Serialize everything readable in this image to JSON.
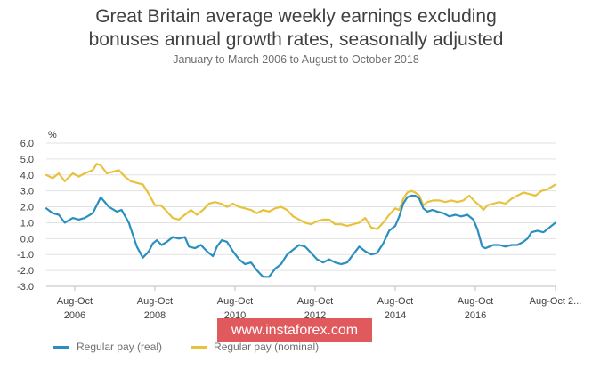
{
  "header": {
    "title_line1": "Great Britain average weekly earnings excluding",
    "title_line2": "bonuses annual growth rates, seasonally adjusted",
    "subtitle": "January to March 2006 to August to October 2018"
  },
  "watermark": "www.instaforex.com",
  "chart_data": {
    "type": "line",
    "title": "Great Britain average weekly earnings excluding bonuses annual growth rates, seasonally adjusted",
    "subtitle": "January to March 2006 to August to October 2018",
    "ylabel": "%",
    "ylim": [
      -3.0,
      6.0
    ],
    "yticks": [
      6.0,
      5.0,
      4.0,
      3.0,
      2.0,
      1.0,
      0.0,
      -1.0,
      -2.0,
      -3.0
    ],
    "ytick_labels": [
      "6.0",
      "5.0",
      "4.0",
      "3.0",
      "2.0",
      "1.0",
      "0.0",
      "-1.0",
      "-2.0",
      "-3.0"
    ],
    "x_start": "2006.04",
    "x_end": "2018.75",
    "xtick_positions": [
      2006.75,
      2008.75,
      2010.75,
      2012.75,
      2014.75,
      2016.75,
      2018.75
    ],
    "xtick_line1": [
      "Aug-Oct",
      "Aug-Oct",
      "Aug-Oct",
      "Aug-Oct",
      "Aug-Oct",
      "Aug-Oct",
      "Aug-Oct 2..."
    ],
    "xtick_line2": [
      "2006",
      "2008",
      "2010",
      "2012",
      "2014",
      "2016",
      ""
    ],
    "grid": true,
    "legend_position": "bottom-left",
    "series": [
      {
        "name": "Regular pay (real)",
        "color": "#2a8fc0",
        "x": [
          2006.04,
          2006.2,
          2006.35,
          2006.5,
          2006.7,
          2006.85,
          2007.0,
          2007.2,
          2007.4,
          2007.6,
          2007.8,
          2007.92,
          2008.1,
          2008.3,
          2008.45,
          2008.6,
          2008.7,
          2008.8,
          2008.92,
          2009.05,
          2009.2,
          2009.35,
          2009.5,
          2009.6,
          2009.75,
          2009.9,
          2010.05,
          2010.2,
          2010.3,
          2010.42,
          2010.55,
          2010.7,
          2010.85,
          2011.0,
          2011.15,
          2011.3,
          2011.45,
          2011.6,
          2011.75,
          2011.9,
          2012.05,
          2012.2,
          2012.35,
          2012.5,
          2012.65,
          2012.8,
          2012.95,
          2013.1,
          2013.25,
          2013.4,
          2013.55,
          2013.7,
          2013.85,
          2014.0,
          2014.15,
          2014.3,
          2014.45,
          2014.6,
          2014.75,
          2014.85,
          2014.95,
          2015.05,
          2015.15,
          2015.25,
          2015.35,
          2015.45,
          2015.55,
          2015.68,
          2015.8,
          2015.95,
          2016.1,
          2016.25,
          2016.4,
          2016.55,
          2016.7,
          2016.8,
          2016.92,
          2017.0,
          2017.1,
          2017.2,
          2017.35,
          2017.5,
          2017.65,
          2017.8,
          2017.95,
          2018.05,
          2018.15,
          2018.3,
          2018.45,
          2018.6,
          2018.75
        ],
        "values": [
          1.9,
          1.6,
          1.5,
          1.0,
          1.3,
          1.2,
          1.3,
          1.6,
          2.6,
          2.0,
          1.7,
          1.8,
          1.0,
          -0.5,
          -1.2,
          -0.8,
          -0.3,
          -0.1,
          -0.4,
          -0.2,
          0.1,
          0.0,
          0.1,
          -0.5,
          -0.6,
          -0.4,
          -0.8,
          -1.1,
          -0.5,
          -0.1,
          -0.2,
          -0.8,
          -1.3,
          -1.6,
          -1.5,
          -2.0,
          -2.4,
          -2.4,
          -1.9,
          -1.6,
          -1.0,
          -0.7,
          -0.4,
          -0.5,
          -0.9,
          -1.3,
          -1.5,
          -1.3,
          -1.5,
          -1.6,
          -1.5,
          -1.0,
          -0.5,
          -0.8,
          -1.0,
          -0.9,
          -0.3,
          0.5,
          0.8,
          1.4,
          2.2,
          2.6,
          2.7,
          2.7,
          2.5,
          1.9,
          1.7,
          1.8,
          1.7,
          1.6,
          1.4,
          1.5,
          1.4,
          1.5,
          1.2,
          0.6,
          -0.5,
          -0.6,
          -0.5,
          -0.4,
          -0.4,
          -0.5,
          -0.4,
          -0.4,
          -0.2,
          0.0,
          0.4,
          0.5,
          0.4,
          0.7,
          1.0
        ]
      },
      {
        "name": "Regular pay (nominal)",
        "color": "#e8c23c",
        "x": [
          2006.04,
          2006.2,
          2006.35,
          2006.5,
          2006.7,
          2006.85,
          2007.0,
          2007.2,
          2007.3,
          2007.4,
          2007.55,
          2007.7,
          2007.85,
          2008.0,
          2008.15,
          2008.3,
          2008.45,
          2008.6,
          2008.75,
          2008.9,
          2009.05,
          2009.2,
          2009.35,
          2009.5,
          2009.65,
          2009.8,
          2009.95,
          2010.1,
          2010.25,
          2010.4,
          2010.55,
          2010.7,
          2010.85,
          2011.0,
          2011.15,
          2011.3,
          2011.45,
          2011.6,
          2011.75,
          2011.9,
          2012.05,
          2012.2,
          2012.35,
          2012.5,
          2012.65,
          2012.8,
          2012.95,
          2013.1,
          2013.25,
          2013.4,
          2013.55,
          2013.7,
          2013.85,
          2014.0,
          2014.15,
          2014.3,
          2014.45,
          2014.6,
          2014.75,
          2014.85,
          2014.95,
          2015.05,
          2015.15,
          2015.25,
          2015.35,
          2015.45,
          2015.55,
          2015.7,
          2015.85,
          2016.0,
          2016.15,
          2016.3,
          2016.45,
          2016.6,
          2016.75,
          2016.85,
          2016.95,
          2017.05,
          2017.2,
          2017.35,
          2017.5,
          2017.65,
          2017.8,
          2017.95,
          2018.1,
          2018.25,
          2018.4,
          2018.55,
          2018.75
        ],
        "values": [
          4.0,
          3.8,
          4.1,
          3.6,
          4.1,
          3.9,
          4.1,
          4.3,
          4.7,
          4.6,
          4.1,
          4.2,
          4.3,
          3.9,
          3.6,
          3.5,
          3.4,
          2.8,
          2.1,
          2.1,
          1.7,
          1.3,
          1.2,
          1.5,
          1.8,
          1.5,
          1.8,
          2.2,
          2.3,
          2.2,
          2.0,
          2.2,
          2.0,
          1.9,
          1.8,
          1.6,
          1.8,
          1.7,
          1.9,
          2.0,
          1.8,
          1.4,
          1.2,
          1.0,
          0.9,
          1.1,
          1.2,
          1.2,
          0.9,
          0.9,
          0.8,
          0.9,
          1.0,
          1.3,
          0.7,
          0.6,
          1.0,
          1.5,
          1.9,
          1.8,
          2.5,
          2.9,
          3.0,
          2.9,
          2.7,
          2.1,
          2.3,
          2.4,
          2.4,
          2.3,
          2.4,
          2.3,
          2.4,
          2.7,
          2.3,
          2.1,
          1.8,
          2.1,
          2.2,
          2.3,
          2.2,
          2.5,
          2.7,
          2.9,
          2.8,
          2.7,
          3.0,
          3.1,
          3.4
        ]
      }
    ]
  }
}
